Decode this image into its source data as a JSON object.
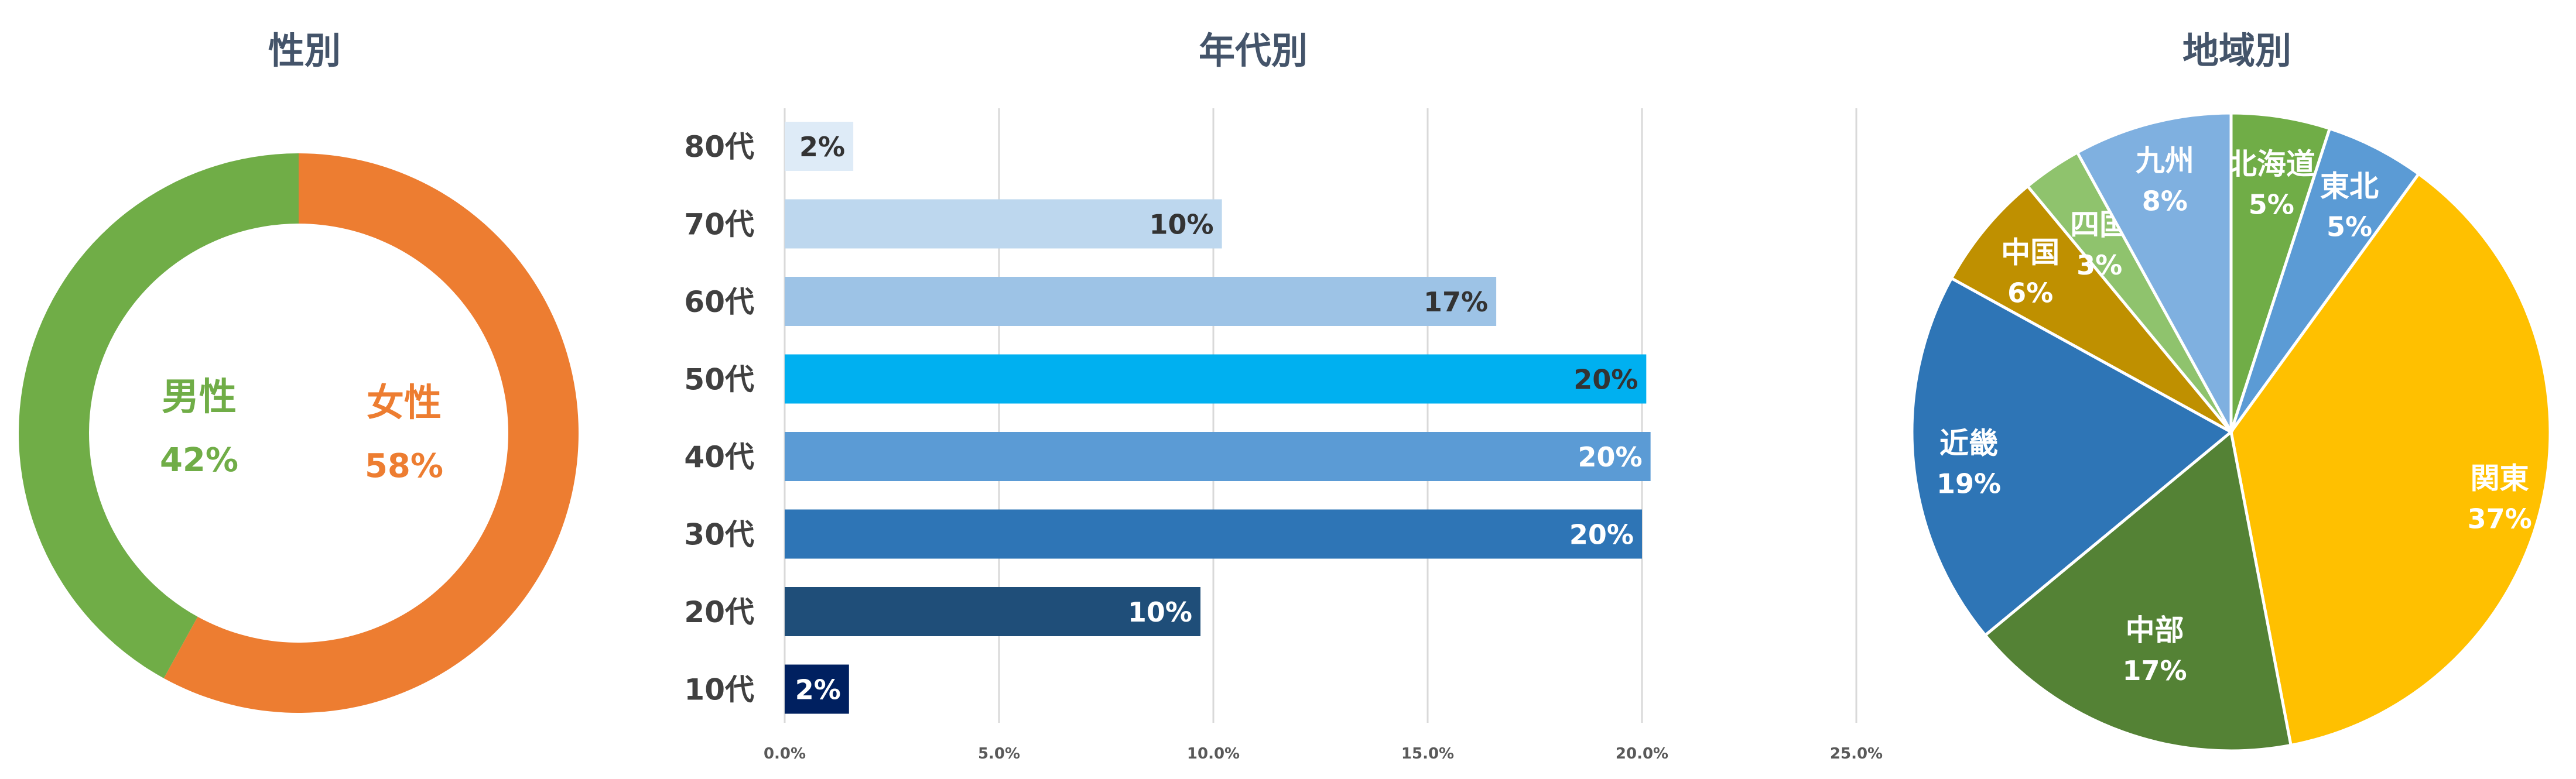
{
  "chart_data": [
    {
      "type": "pie",
      "variant": "donut",
      "title": "性別",
      "slices": [
        {
          "label": "女性",
          "value": 58,
          "value_label": "58%",
          "color": "#ed7d31"
        },
        {
          "label": "男性",
          "value": 42,
          "value_label": "42%",
          "color": "#70ad47"
        }
      ]
    },
    {
      "type": "bar",
      "orientation": "horizontal",
      "title": "年代別",
      "categories": [
        "80代",
        "70代",
        "60代",
        "50代",
        "40代",
        "30代",
        "20代",
        "10代"
      ],
      "values": [
        1.6,
        10.2,
        16.6,
        20.1,
        20.2,
        20.0,
        9.7,
        1.5
      ],
      "value_labels": [
        "2%",
        "10%",
        "17%",
        "20%",
        "20%",
        "20%",
        "10%",
        "2%"
      ],
      "colors": [
        "#deebf7",
        "#bdd7ee",
        "#9dc3e6",
        "#00b0f0",
        "#5b9bd5",
        "#2e75b6",
        "#1f4e79",
        "#002060"
      ],
      "label_colors": [
        "#333333",
        "#333333",
        "#333333",
        "#333333",
        "#ffffff",
        "#ffffff",
        "#ffffff",
        "#ffffff"
      ],
      "xlim": [
        0,
        25
      ],
      "xticks": [
        "0.0%",
        "5.0%",
        "10.0%",
        "15.0%",
        "20.0%",
        "25.0%"
      ],
      "grid": true
    },
    {
      "type": "pie",
      "title": "地域別",
      "slices": [
        {
          "label": "北海道",
          "value": 5,
          "value_label": "5%",
          "color": "#70ad47"
        },
        {
          "label": "東北",
          "value": 5,
          "value_label": "5%",
          "color": "#5b9bd5"
        },
        {
          "label": "関東",
          "value": 37,
          "value_label": "37%",
          "color": "#ffc000"
        },
        {
          "label": "中部",
          "value": 17,
          "value_label": "17%",
          "color": "#548235"
        },
        {
          "label": "近畿",
          "value": 19,
          "value_label": "19%",
          "color": "#2e75b6"
        },
        {
          "label": "中国",
          "value": 6,
          "value_label": "6%",
          "color": "#bf9000"
        },
        {
          "label": "四国",
          "value": 3,
          "value_label": "3%",
          "color": "#8fc36d"
        },
        {
          "label": "九州",
          "value": 8,
          "value_label": "8%",
          "color": "#7fb0e0"
        }
      ]
    }
  ]
}
